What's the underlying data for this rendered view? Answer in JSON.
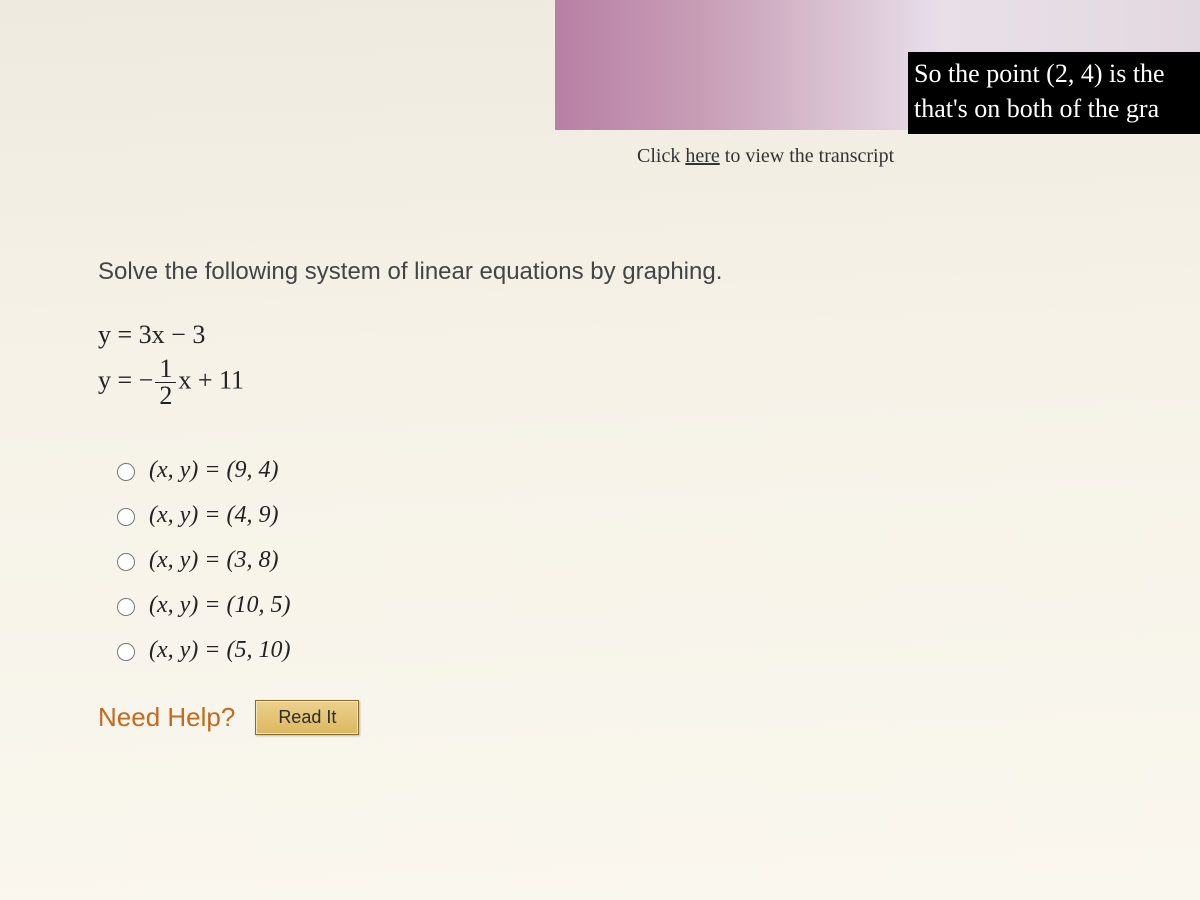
{
  "video": {
    "caption_line1": "So the point (2, 4) is the",
    "caption_line2": "that's on both of the gra"
  },
  "transcript": {
    "prefix": "Click ",
    "link_text": "here",
    "suffix": " to view the transcript"
  },
  "question": {
    "prompt": "Solve the following system of linear equations by graphing.",
    "eq1": "y = 3x − 3",
    "eq2_prefix": "y = −",
    "eq2_frac_num": "1",
    "eq2_frac_den": "2",
    "eq2_suffix": "x + 11"
  },
  "options": [
    {
      "label": "(x, y) = (9, 4)"
    },
    {
      "label": "(x, y) = (4, 9)"
    },
    {
      "label": "(x, y) = (3, 8)"
    },
    {
      "label": "(x, y) = (10, 5)"
    },
    {
      "label": "(x, y) = (5, 10)"
    }
  ],
  "help": {
    "need_help": "Need Help?",
    "read_it": "Read It"
  },
  "colors": {
    "background": "#f2eee6",
    "accent": "#c26a1e",
    "button_bg": "#e4c574",
    "button_border": "#8a6a25",
    "caption_bg": "#000000",
    "caption_fg": "#ffffff"
  }
}
